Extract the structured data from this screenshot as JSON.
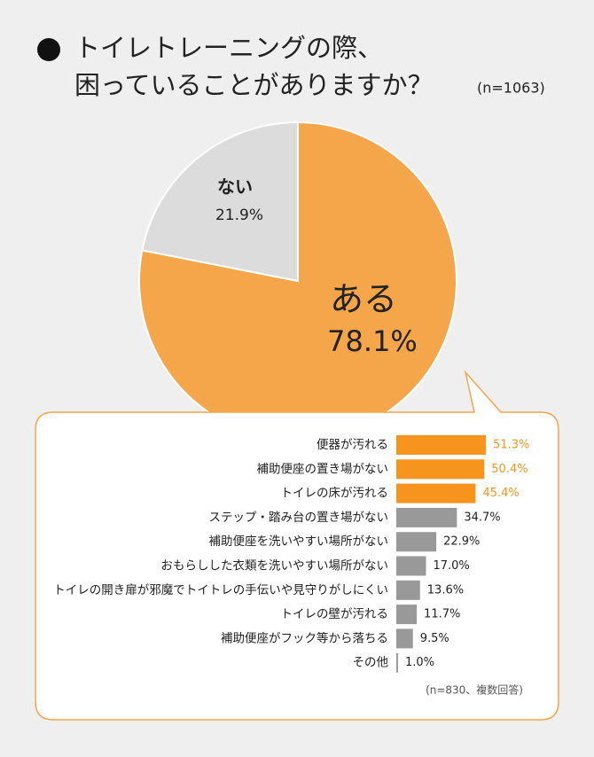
{
  "chart_data": [
    {
      "type": "pie",
      "title": [
        "トイレトレーニングの際、",
        "困っていることがありますか？"
      ],
      "subtitle": "(n=1063)",
      "categories": [
        "ある",
        "ない"
      ],
      "values": [
        78.1,
        21.9
      ],
      "value_labels": [
        "78.1%",
        "21.9%"
      ],
      "colors": [
        "#f5a54a",
        "#dcdcdc"
      ]
    },
    {
      "type": "bar",
      "note": "(n=830、複数回答)",
      "categories": [
        "便器が汚れる",
        "補助便座の置き場がない",
        "トイレの床が汚れる",
        "ステップ・踏み台の置き場がない",
        "補助便座を洗いやすい場所がない",
        "おもらしした衣類を洗いやすい場所がない",
        "トイレの開き扉が邪魔でトイトレの手伝いや見守りがしにくい",
        "トイレの壁が汚れる",
        "補助便座がフック等から落ちる",
        "その他"
      ],
      "values": [
        51.3,
        50.4,
        45.4,
        34.7,
        22.9,
        17.0,
        13.6,
        11.7,
        9.5,
        1.0
      ],
      "value_labels": [
        "51.3%",
        "50.4%",
        "45.4%",
        "34.7%",
        "22.9%",
        "17.0%",
        "13.6%",
        "11.7%",
        "9.5%",
        "1.0%"
      ],
      "colors": [
        "#f7941d",
        "#f7941d",
        "#f7941d",
        "#999999",
        "#999999",
        "#999999",
        "#999999",
        "#999999",
        "#999999",
        "#999999"
      ]
    }
  ]
}
